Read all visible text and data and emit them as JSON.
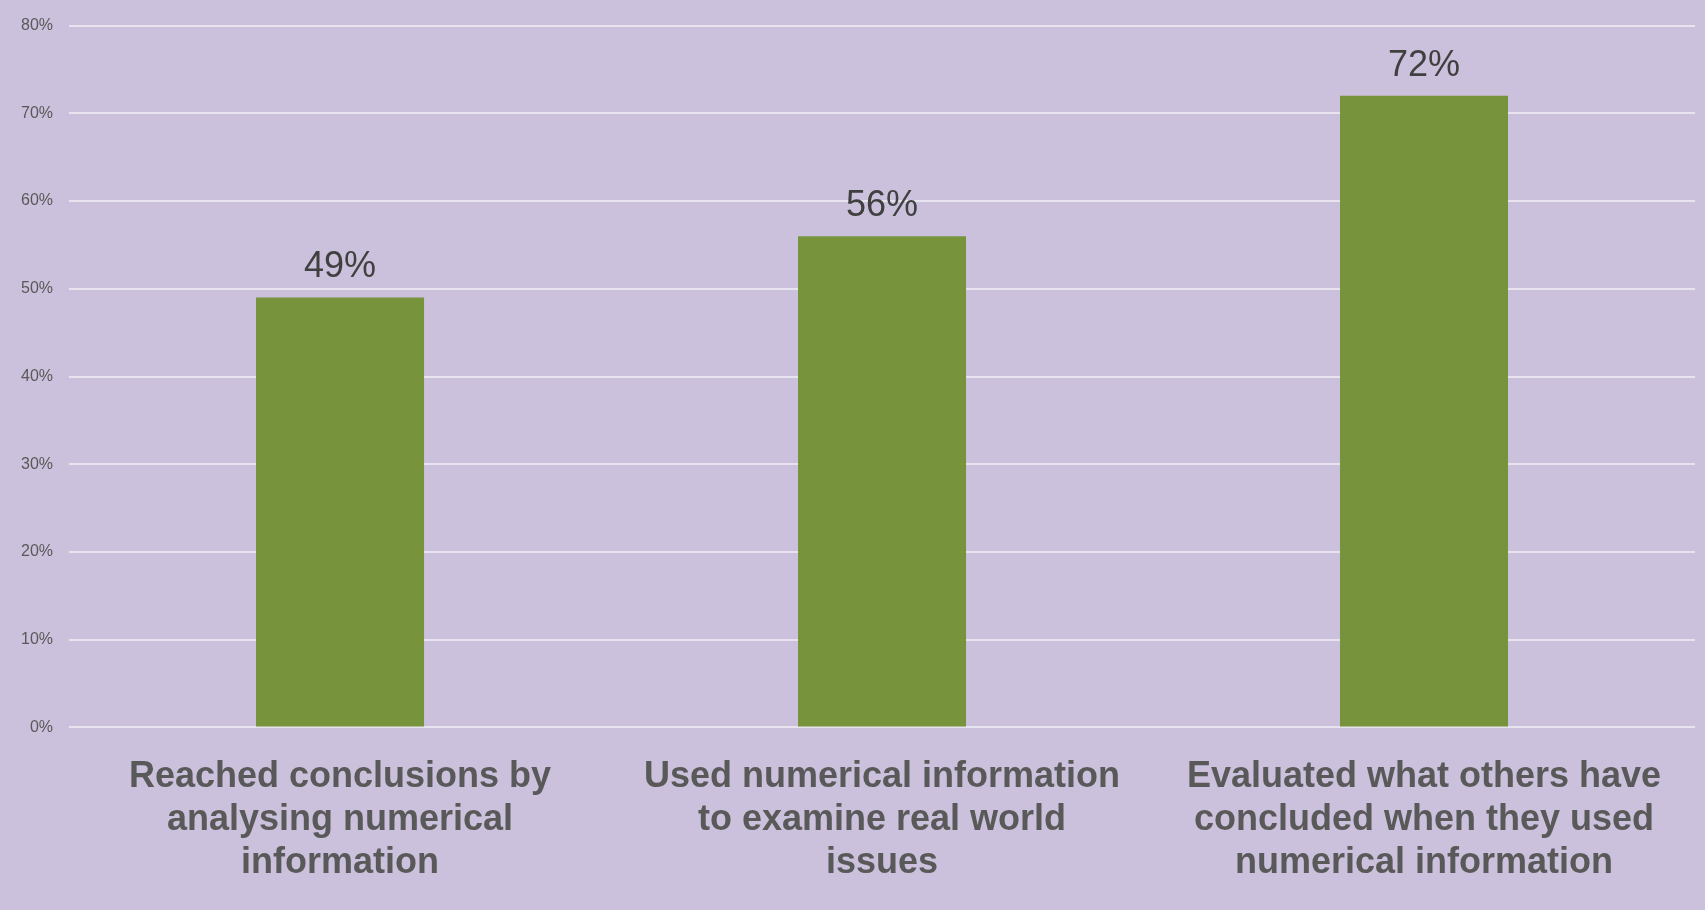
{
  "chart_data": {
    "type": "bar",
    "categories": [
      "Reached conclusions by analysing numerical information",
      "Used numerical information to examine real world issues",
      "Evaluated what others have concluded when they used numerical information"
    ],
    "values": [
      49,
      56,
      72
    ],
    "color": "#77933c",
    "value_labels": [
      "49%",
      "56%",
      "72%"
    ],
    "ylim": [
      0,
      80
    ],
    "yticks": [
      {
        "value": 0,
        "label": "0%"
      },
      {
        "value": 10,
        "label": "10%"
      },
      {
        "value": 20,
        "label": "20%"
      },
      {
        "value": 30,
        "label": "30%"
      },
      {
        "value": 40,
        "label": "40%"
      },
      {
        "value": 50,
        "label": "50%"
      },
      {
        "value": 60,
        "label": "60%"
      },
      {
        "value": 70,
        "label": "70%"
      },
      {
        "value": 80,
        "label": "80%"
      }
    ],
    "grid": "y",
    "legend": false
  }
}
